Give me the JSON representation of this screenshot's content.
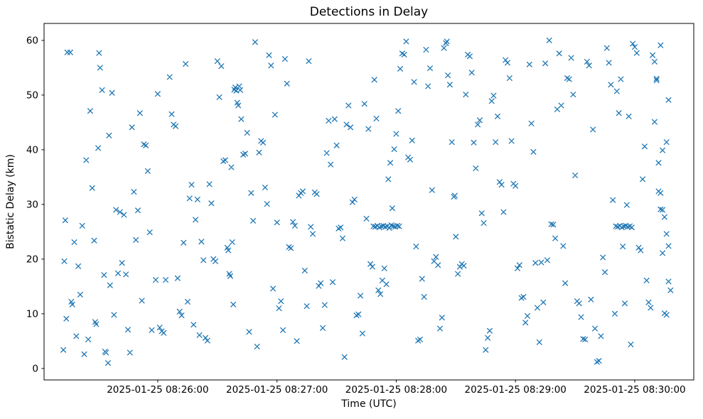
{
  "chart_data": {
    "type": "scatter",
    "title": "Detections in Delay",
    "xlabel": "Time (UTC)",
    "ylabel": "Bistatic Delay (km)",
    "marker": "x",
    "marker_color": "#1f77b4",
    "legend": "none",
    "grid": false,
    "x_axis": {
      "unit": "seconds after 2025-01-25 08:25:00 UTC",
      "range": [
        2.8,
        329.7
      ],
      "ticks": [
        {
          "value": 60,
          "label": "2025-01-25 08:26:00"
        },
        {
          "value": 120,
          "label": "2025-01-25 08:27:00"
        },
        {
          "value": 180,
          "label": "2025-01-25 08:28:00"
        },
        {
          "value": 240,
          "label": "2025-01-25 08:29:00"
        },
        {
          "value": 300,
          "label": "2025-01-25 08:30:00"
        }
      ]
    },
    "y_axis": {
      "range": [
        -2.1,
        63.1
      ],
      "ticks": [
        0,
        10,
        20,
        30,
        40,
        50,
        60
      ]
    },
    "points": [
      [
        12.5,
        3.4
      ],
      [
        13,
        19.6
      ],
      [
        13.5,
        27.1
      ],
      [
        14,
        9.1
      ],
      [
        14.5,
        57.8
      ],
      [
        16,
        57.8
      ],
      [
        16.5,
        12.2
      ],
      [
        17,
        11.7
      ],
      [
        18,
        23.1
      ],
      [
        19,
        5.9
      ],
      [
        20,
        18.7
      ],
      [
        21,
        13.5
      ],
      [
        22,
        26.1
      ],
      [
        23,
        2.6
      ],
      [
        24,
        38.1
      ],
      [
        25,
        5.3
      ],
      [
        26,
        47.1
      ],
      [
        27,
        33.0
      ],
      [
        28,
        23.4
      ],
      [
        28.5,
        8.5
      ],
      [
        29,
        8.1
      ],
      [
        30,
        40.3
      ],
      [
        30.5,
        57.7
      ],
      [
        31,
        55.0
      ],
      [
        32,
        50.9
      ],
      [
        33,
        17.1
      ],
      [
        33.5,
        3.1
      ],
      [
        34,
        2.9
      ],
      [
        35,
        1.0
      ],
      [
        35.5,
        42.6
      ],
      [
        36,
        15.2
      ],
      [
        37,
        50.4
      ],
      [
        38,
        9.8
      ],
      [
        39,
        29.0
      ],
      [
        40,
        17.4
      ],
      [
        41,
        28.6
      ],
      [
        42,
        19.3
      ],
      [
        43,
        28.1
      ],
      [
        44,
        17.2
      ],
      [
        45,
        7.1
      ],
      [
        46,
        2.9
      ],
      [
        47,
        44.1
      ],
      [
        48,
        32.3
      ],
      [
        49,
        23.5
      ],
      [
        50,
        28.9
      ],
      [
        51,
        46.7
      ],
      [
        52,
        12.4
      ],
      [
        53,
        41.0
      ],
      [
        54,
        40.8
      ],
      [
        55,
        36.1
      ],
      [
        56,
        24.9
      ],
      [
        57,
        7.0
      ],
      [
        59,
        16.2
      ],
      [
        60,
        50.2
      ],
      [
        61,
        7.5
      ],
      [
        62,
        6.8
      ],
      [
        63,
        6.5
      ],
      [
        64,
        16.2
      ],
      [
        66,
        53.3
      ],
      [
        67,
        46.5
      ],
      [
        68,
        44.6
      ],
      [
        69,
        44.3
      ],
      [
        70,
        16.5
      ],
      [
        71,
        10.4
      ],
      [
        72,
        9.7
      ],
      [
        73,
        23.0
      ],
      [
        74,
        55.7
      ],
      [
        75,
        12.2
      ],
      [
        76,
        31.1
      ],
      [
        77,
        33.6
      ],
      [
        78,
        8.0
      ],
      [
        79,
        27.2
      ],
      [
        80,
        30.9
      ],
      [
        81,
        6.1
      ],
      [
        82,
        23.2
      ],
      [
        83,
        19.8
      ],
      [
        84,
        5.6
      ],
      [
        85,
        5.1
      ],
      [
        86,
        33.7
      ],
      [
        87,
        30.2
      ],
      [
        88,
        20.0
      ],
      [
        89,
        19.6
      ],
      [
        90,
        56.2
      ],
      [
        91,
        49.6
      ],
      [
        92,
        55.3
      ],
      [
        93,
        37.9
      ],
      [
        94,
        38.1
      ],
      [
        95,
        22.1
      ],
      [
        95.5,
        21.6
      ],
      [
        96,
        17.3
      ],
      [
        96.5,
        16.9
      ],
      [
        97,
        36.8
      ],
      [
        97.5,
        23.1
      ],
      [
        98,
        11.7
      ],
      [
        98.5,
        51.0
      ],
      [
        99,
        51.4
      ],
      [
        99.5,
        50.8
      ],
      [
        100,
        48.6
      ],
      [
        100.5,
        48.1
      ],
      [
        101,
        51.6
      ],
      [
        101.5,
        50.9
      ],
      [
        102,
        45.6
      ],
      [
        103,
        39.1
      ],
      [
        104,
        39.3
      ],
      [
        105,
        43.1
      ],
      [
        106,
        6.7
      ],
      [
        107,
        32.1
      ],
      [
        108,
        27.0
      ],
      [
        109,
        59.7
      ],
      [
        110,
        4.0
      ],
      [
        111,
        39.5
      ],
      [
        112,
        41.6
      ],
      [
        113,
        41.3
      ],
      [
        114,
        33.1
      ],
      [
        115,
        30.1
      ],
      [
        116,
        57.3
      ],
      [
        117,
        55.4
      ],
      [
        118,
        14.6
      ],
      [
        119,
        46.4
      ],
      [
        120,
        26.7
      ],
      [
        121,
        11.0
      ],
      [
        122,
        12.3
      ],
      [
        123,
        7.0
      ],
      [
        124,
        56.6
      ],
      [
        125,
        52.1
      ],
      [
        126,
        22.2
      ],
      [
        127,
        22.0
      ],
      [
        128,
        26.8
      ],
      [
        129,
        26.1
      ],
      [
        130,
        5.0
      ],
      [
        131,
        31.6
      ],
      [
        132,
        32.1
      ],
      [
        133,
        32.4
      ],
      [
        134,
        17.9
      ],
      [
        135,
        11.4
      ],
      [
        136,
        56.2
      ],
      [
        137,
        25.9
      ],
      [
        138,
        24.6
      ],
      [
        139,
        32.2
      ],
      [
        140,
        31.9
      ],
      [
        141,
        15.1
      ],
      [
        142,
        15.6
      ],
      [
        143,
        7.4
      ],
      [
        144,
        11.6
      ],
      [
        145,
        39.4
      ],
      [
        146,
        45.3
      ],
      [
        147,
        37.3
      ],
      [
        148,
        15.8
      ],
      [
        149,
        45.6
      ],
      [
        150,
        40.8
      ],
      [
        151,
        25.6
      ],
      [
        152,
        25.8
      ],
      [
        153,
        23.8
      ],
      [
        154,
        2.1
      ],
      [
        155,
        44.6
      ],
      [
        156,
        48.1
      ],
      [
        157,
        44.1
      ],
      [
        158,
        30.4
      ],
      [
        159,
        30.9
      ],
      [
        160,
        9.7
      ],
      [
        161,
        9.9
      ],
      [
        162,
        13.3
      ],
      [
        163,
        6.4
      ],
      [
        164,
        48.4
      ],
      [
        165,
        27.4
      ],
      [
        166,
        43.8
      ],
      [
        167,
        19.1
      ],
      [
        168,
        18.6
      ],
      [
        169,
        52.8
      ],
      [
        170,
        45.7
      ],
      [
        171,
        14.3
      ],
      [
        172,
        13.6
      ],
      [
        173,
        16.1
      ],
      [
        174,
        18.3
      ],
      [
        175,
        15.4
      ],
      [
        176,
        34.6
      ],
      [
        177,
        37.6
      ],
      [
        178,
        29.3
      ],
      [
        179,
        40.1
      ],
      [
        180,
        42.9
      ],
      [
        181,
        47.1
      ],
      [
        182,
        54.8
      ],
      [
        183,
        57.6
      ],
      [
        184,
        57.4
      ],
      [
        185,
        59.8
      ],
      [
        186,
        38.6
      ],
      [
        187,
        38.2
      ],
      [
        188,
        41.7
      ],
      [
        189,
        52.4
      ],
      [
        190,
        22.3
      ],
      [
        191,
        5.1
      ],
      [
        192,
        5.3
      ],
      [
        193,
        16.4
      ],
      [
        194,
        13.1
      ],
      [
        168.5,
        26.0
      ],
      [
        169.5,
        25.9
      ],
      [
        170.5,
        26.1
      ],
      [
        171.5,
        25.8
      ],
      [
        172.5,
        26.0
      ],
      [
        173.5,
        26.1
      ],
      [
        174.5,
        25.9
      ],
      [
        175.5,
        26.0
      ],
      [
        176.5,
        25.7
      ],
      [
        177.5,
        26.2
      ],
      [
        178.5,
        26.0
      ],
      [
        179.5,
        25.9
      ],
      [
        180.5,
        26.1
      ],
      [
        181.5,
        26.0
      ],
      [
        195,
        58.3
      ],
      [
        196,
        51.6
      ],
      [
        197,
        54.9
      ],
      [
        198,
        32.6
      ],
      [
        199,
        19.6
      ],
      [
        200,
        20.4
      ],
      [
        201,
        18.9
      ],
      [
        202,
        7.3
      ],
      [
        203,
        9.3
      ],
      [
        204,
        58.6
      ],
      [
        205,
        59.5
      ],
      [
        205.5,
        59.8
      ],
      [
        206,
        53.6
      ],
      [
        207,
        51.9
      ],
      [
        208,
        41.4
      ],
      [
        209,
        31.4
      ],
      [
        209.5,
        31.6
      ],
      [
        210,
        24.1
      ],
      [
        211,
        17.3
      ],
      [
        212,
        18.6
      ],
      [
        213,
        19.1
      ],
      [
        214,
        18.8
      ],
      [
        215,
        50.1
      ],
      [
        216,
        57.4
      ],
      [
        217,
        57.1
      ],
      [
        218,
        54.1
      ],
      [
        219,
        41.3
      ],
      [
        220,
        36.6
      ],
      [
        221,
        44.6
      ],
      [
        222,
        45.4
      ],
      [
        223,
        28.4
      ],
      [
        224,
        26.6
      ],
      [
        225,
        3.4
      ],
      [
        226,
        5.6
      ],
      [
        227,
        6.9
      ],
      [
        228,
        48.9
      ],
      [
        229,
        49.9
      ],
      [
        230,
        41.4
      ],
      [
        231,
        46.1
      ],
      [
        232,
        34.1
      ],
      [
        233,
        33.6
      ],
      [
        234,
        28.6
      ],
      [
        235,
        56.4
      ],
      [
        236,
        55.9
      ],
      [
        237,
        53.1
      ],
      [
        238,
        41.6
      ],
      [
        239,
        33.8
      ],
      [
        240,
        33.4
      ],
      [
        241,
        18.3
      ],
      [
        242,
        18.9
      ],
      [
        243,
        12.9
      ],
      [
        244,
        13.1
      ],
      [
        245,
        8.4
      ],
      [
        246,
        9.6
      ],
      [
        247,
        55.6
      ],
      [
        248,
        44.8
      ],
      [
        249,
        39.6
      ],
      [
        250,
        19.3
      ],
      [
        251,
        11.1
      ],
      [
        252,
        4.8
      ],
      [
        253,
        19.4
      ],
      [
        254,
        12.1
      ],
      [
        255,
        55.8
      ],
      [
        256,
        19.8
      ],
      [
        257,
        60.0
      ],
      [
        258,
        26.4
      ],
      [
        259,
        26.3
      ],
      [
        260,
        23.8
      ],
      [
        261,
        47.4
      ],
      [
        262,
        57.6
      ],
      [
        263,
        48.1
      ],
      [
        264,
        22.4
      ],
      [
        265,
        15.6
      ],
      [
        266,
        53.1
      ],
      [
        267,
        52.9
      ],
      [
        268,
        56.8
      ],
      [
        269,
        50.1
      ],
      [
        270,
        35.3
      ],
      [
        271,
        12.3
      ],
      [
        272,
        11.9
      ],
      [
        273,
        9.4
      ],
      [
        274,
        5.4
      ],
      [
        275,
        5.3
      ],
      [
        276,
        56.1
      ],
      [
        277,
        55.4
      ],
      [
        278,
        12.6
      ],
      [
        279,
        43.7
      ],
      [
        280,
        7.3
      ],
      [
        281,
        1.2
      ],
      [
        282,
        1.4
      ],
      [
        283,
        5.9
      ],
      [
        284,
        20.3
      ],
      [
        285,
        17.6
      ],
      [
        286,
        58.6
      ],
      [
        287,
        55.9
      ],
      [
        288,
        51.9
      ],
      [
        289,
        30.8
      ],
      [
        290,
        10.0
      ],
      [
        291,
        50.7
      ],
      [
        292,
        46.7
      ],
      [
        293,
        52.9
      ],
      [
        294,
        22.3
      ],
      [
        295,
        11.9
      ],
      [
        296,
        29.9
      ],
      [
        297,
        46.1
      ],
      [
        298,
        4.4
      ],
      [
        299,
        59.4
      ],
      [
        300,
        58.8
      ],
      [
        301,
        57.7
      ],
      [
        302,
        22.1
      ],
      [
        303,
        21.6
      ],
      [
        304,
        34.6
      ],
      [
        305,
        40.6
      ],
      [
        306,
        16.1
      ],
      [
        307,
        12.1
      ],
      [
        308,
        11.1
      ],
      [
        309,
        57.3
      ],
      [
        310,
        56.1
      ],
      [
        311,
        53.0
      ],
      [
        312,
        37.6
      ],
      [
        313,
        29.1
      ],
      [
        314,
        21.1
      ],
      [
        315,
        10.1
      ],
      [
        316,
        9.8
      ],
      [
        317,
        15.9
      ],
      [
        318,
        14.3
      ],
      [
        290.5,
        26.0
      ],
      [
        291.5,
        25.9
      ],
      [
        292.5,
        26.1
      ],
      [
        293.5,
        25.8
      ],
      [
        294.5,
        26.0
      ],
      [
        295.5,
        26.1
      ],
      [
        296.5,
        25.9
      ],
      [
        297.5,
        26.0
      ],
      [
        298.5,
        25.8
      ],
      [
        310,
        45.1
      ],
      [
        312,
        32.4
      ],
      [
        313,
        32.1
      ],
      [
        314,
        29.0
      ],
      [
        315,
        27.7
      ],
      [
        316,
        24.6
      ],
      [
        317,
        22.4
      ],
      [
        316,
        41.4
      ],
      [
        314,
        39.9
      ],
      [
        311,
        52.7
      ],
      [
        317,
        49.1
      ],
      [
        313,
        59.1
      ]
    ]
  }
}
